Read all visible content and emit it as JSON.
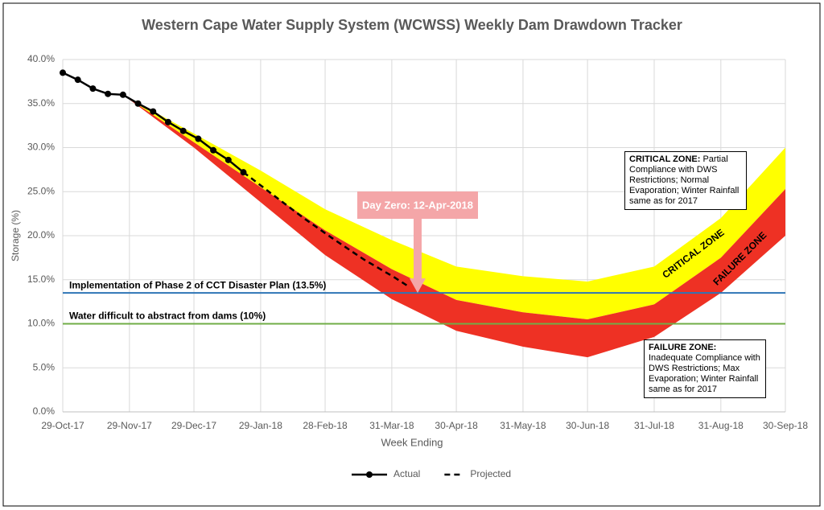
{
  "chart_data": {
    "type": "line",
    "title": "Western Cape Water Supply System (WCWSS) Weekly Dam Drawdown Tracker",
    "xlabel": "Week Ending",
    "ylabel": "Storage (%)",
    "xlim": [
      "29-Oct-17",
      "30-Sep-18"
    ],
    "xticks": [
      "29-Oct-17",
      "29-Nov-17",
      "29-Dec-17",
      "29-Jan-18",
      "28-Feb-18",
      "31-Mar-18",
      "30-Apr-18",
      "31-May-18",
      "30-Jun-18",
      "31-Jul-18",
      "31-Aug-18",
      "30-Sep-18"
    ],
    "ylim": [
      0,
      40
    ],
    "yticks": [
      {
        "value": 0,
        "label": "0.0%"
      },
      {
        "value": 5,
        "label": "5.0%"
      },
      {
        "value": 10,
        "label": "10.0%"
      },
      {
        "value": 15,
        "label": "15.0%"
      },
      {
        "value": 20,
        "label": "20.0%"
      },
      {
        "value": 25,
        "label": "25.0%"
      },
      {
        "value": 30,
        "label": "30.0%"
      },
      {
        "value": 35,
        "label": "35.0%"
      },
      {
        "value": 40,
        "label": "40.0%"
      }
    ],
    "grid": true,
    "legend": "bottom",
    "bands": [
      {
        "label": "CRITICAL ZONE",
        "color": "#ffff00",
        "x": [
          "26-Nov-17",
          "29-Dec-17",
          "29-Jan-18",
          "28-Feb-18",
          "31-Mar-18",
          "30-Apr-18",
          "31-May-18",
          "30-Jun-18",
          "31-Jul-18",
          "31-Aug-18",
          "30-Sep-18"
        ],
        "upper": [
          36.0,
          31.6,
          27.4,
          23.0,
          19.5,
          16.5,
          15.4,
          14.8,
          16.5,
          22.0,
          30.0
        ],
        "lower": [
          36.0,
          30.6,
          25.5,
          20.6,
          16.2,
          12.7,
          11.3,
          10.5,
          12.2,
          17.5,
          25.3
        ]
      },
      {
        "label": "FAILURE ZONE",
        "color": "#ee3124",
        "x": [
          "26-Nov-17",
          "29-Dec-17",
          "29-Jan-18",
          "28-Feb-18",
          "31-Mar-18",
          "30-Apr-18",
          "31-May-18",
          "30-Jun-18",
          "31-Jul-18",
          "31-Aug-18",
          "30-Sep-18"
        ],
        "upper": [
          36.0,
          30.6,
          25.5,
          20.6,
          16.2,
          12.7,
          11.3,
          10.5,
          12.2,
          17.5,
          25.3
        ],
        "lower": [
          36.0,
          30.0,
          23.8,
          17.8,
          12.8,
          9.2,
          7.4,
          6.2,
          8.5,
          13.5,
          20.0
        ]
      }
    ],
    "series": [
      {
        "name": "Actual",
        "color": "#000000",
        "style": "solid",
        "markers": true,
        "x": [
          "29-Oct-17",
          "5-Nov-17",
          "12-Nov-17",
          "19-Nov-17",
          "26-Nov-17",
          "3-Dec-17",
          "10-Dec-17",
          "17-Dec-17",
          "24-Dec-17",
          "31-Dec-17",
          "7-Jan-18",
          "14-Jan-18",
          "21-Jan-18"
        ],
        "values": [
          38.5,
          37.7,
          36.7,
          36.1,
          36.0,
          35.0,
          34.1,
          32.9,
          31.9,
          31.0,
          29.7,
          28.6,
          27.2
        ]
      },
      {
        "name": "Projected",
        "color": "#000000",
        "style": "dashed",
        "markers": false,
        "x": [
          "21-Jan-18",
          "4-Feb-18",
          "18-Feb-18",
          "4-Mar-18",
          "18-Mar-18",
          "1-Apr-18",
          "8-Apr-18"
        ],
        "values": [
          27.2,
          24.6,
          22.0,
          19.6,
          17.3,
          15.3,
          14.2
        ]
      }
    ],
    "reference_lines": [
      {
        "label": "Implementation of Phase 2 of CCT Disaster Plan (13.5%)",
        "value": 13.5,
        "color": "#2e75b6"
      },
      {
        "label": "Water difficult to abstract from dams (10%)",
        "value": 10,
        "color": "#70ad47"
      }
    ],
    "day_zero": {
      "text": "Day Zero: 12-Apr-2018",
      "x": "12-Apr-18",
      "y": 13.5,
      "color": "#f4a6a8"
    },
    "notes": [
      {
        "heading": "CRITICAL ZONE:",
        "text": "Partial Compliance with DWS Restrictions; Normal Evaporation; Winter Rainfall same as for 2017"
      },
      {
        "heading": "FAILURE ZONE:",
        "text": "Inadequate Compliance with DWS Restrictions; Max Evaporation; Winter Rainfall same as for 2017"
      }
    ]
  }
}
